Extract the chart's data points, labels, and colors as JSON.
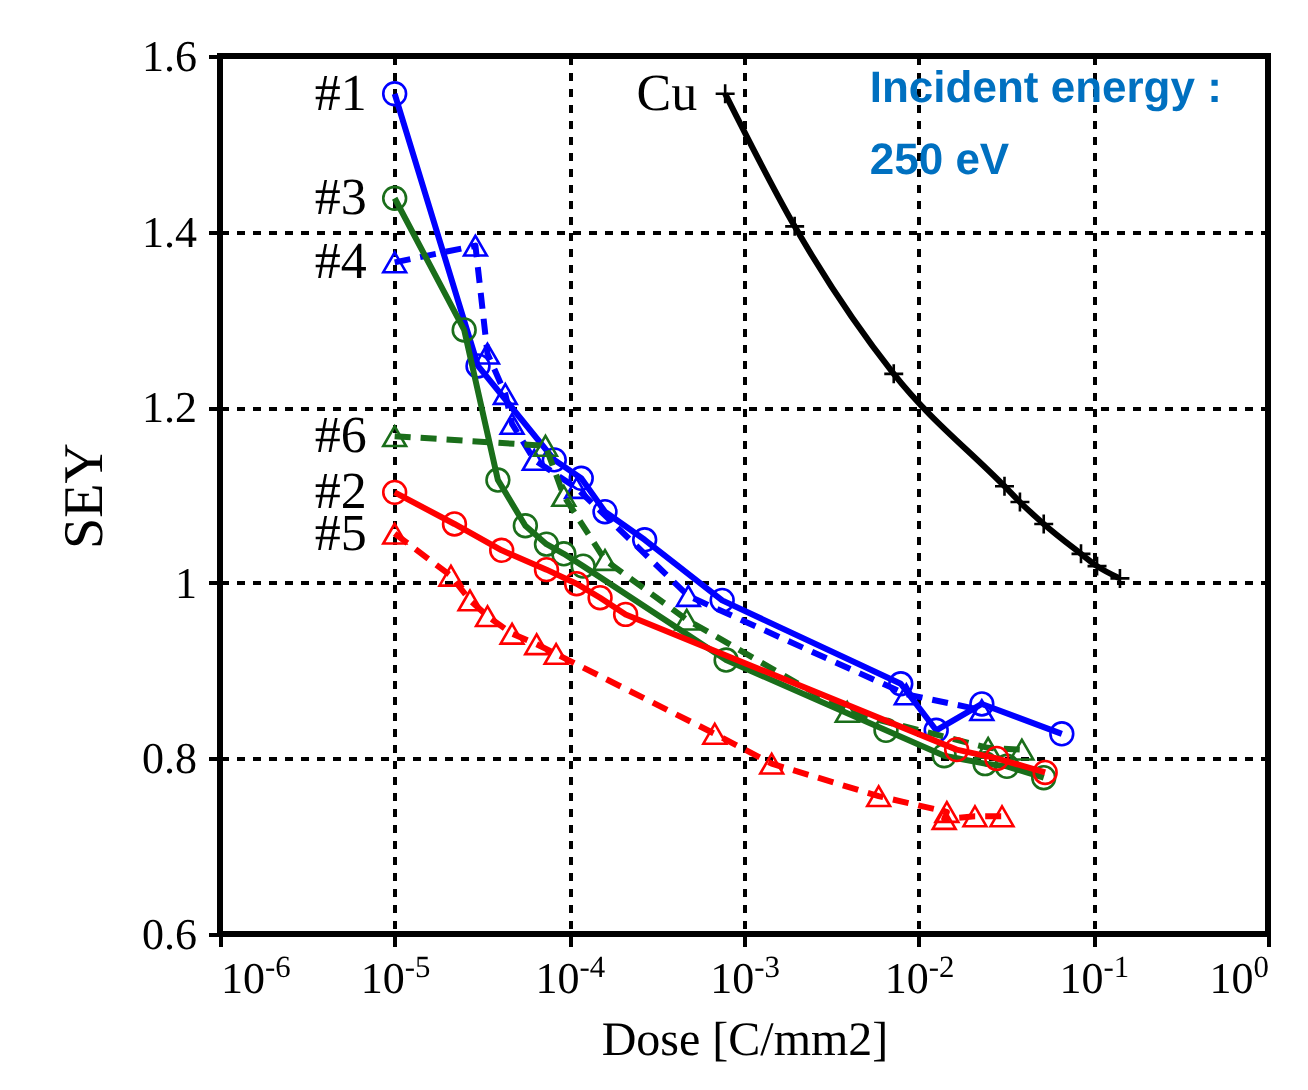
{
  "chart_data": {
    "type": "line",
    "xlabel": "Dose [C/mm2]",
    "ylabel": "SEY",
    "log": "x",
    "grid": true,
    "xlim": [
      1e-06,
      1
    ],
    "ylim": [
      0.6,
      1.6
    ],
    "xticks": [
      {
        "value": 1e-06,
        "label": "10$^{-6}$"
      },
      {
        "value": 1e-05,
        "label": "10$^{-5}$"
      },
      {
        "value": 0.0001,
        "label": "10$^{-4}$"
      },
      {
        "value": 0.001,
        "label": "10$^{-3}$"
      },
      {
        "value": 0.01,
        "label": "10$^{-2}$"
      },
      {
        "value": 0.1,
        "label": "10$^{-1}$"
      },
      {
        "value": 1,
        "label": "10$^{0}$"
      }
    ],
    "yticks": [
      0.6,
      0.8,
      1,
      1.2,
      1.4,
      1.6
    ],
    "annotations": [
      "Incident energy :\n250 eV"
    ],
    "series": [
      {
        "name": "#1",
        "color": "#0000ff",
        "marker": "circle",
        "line_style": "solid",
        "x": [
          1e-05,
          3e-05,
          8.2e-05,
          0.000117,
          0.00016,
          0.00027,
          0.00075,
          0.0079,
          0.0126,
          0.023,
          0.066
        ],
        "values": [
          1.557,
          1.247,
          1.14,
          1.119,
          1.081,
          1.049,
          0.98,
          0.885,
          0.832,
          0.862,
          0.828
        ]
      },
      {
        "name": "#4",
        "color": "#0000ff",
        "marker": "triangle",
        "line_style": "dashed",
        "x": [
          1e-05,
          2.9e-05,
          3.4e-05,
          4.3e-05,
          4.7e-05,
          6.3e-05,
          0.00011,
          0.00048,
          0.0085,
          0.023
        ],
        "values": [
          1.365,
          1.384,
          1.261,
          1.215,
          1.181,
          1.14,
          1.108,
          0.985,
          0.873,
          0.855
        ]
      },
      {
        "name": "#3",
        "color": "#1a6e1a",
        "marker": "circle",
        "line_style": "solid",
        "x": [
          1e-05,
          2.5e-05,
          3.9e-05,
          5.6e-05,
          7.4e-05,
          9.3e-05,
          0.00012,
          0.00079,
          0.0065,
          0.014,
          0.024,
          0.032,
          0.052
        ],
        "values": [
          1.438,
          1.288,
          1.117,
          1.065,
          1.044,
          1.033,
          1.019,
          0.912,
          0.832,
          0.803,
          0.794,
          0.791,
          0.778
        ]
      },
      {
        "name": "#6",
        "color": "#1a6e1a",
        "marker": "triangle",
        "line_style": "dashed",
        "x": [
          1e-05,
          7.3e-05,
          9.3e-05,
          0.00016,
          0.00047,
          0.0039,
          0.025,
          0.039
        ],
        "values": [
          1.167,
          1.156,
          1.099,
          1.026,
          0.958,
          0.853,
          0.812,
          0.81
        ]
      },
      {
        "name": "#2",
        "color": "#ff0000",
        "marker": "circle",
        "line_style": "solid",
        "x": [
          1e-05,
          2.2e-05,
          4.1e-05,
          7.4e-05,
          0.00011,
          0.00015,
          0.00021,
          0.0165,
          0.028,
          0.053
        ],
        "values": [
          1.103,
          1.067,
          1.037,
          1.015,
          0.999,
          0.983,
          0.964,
          0.81,
          0.8,
          0.784
        ]
      },
      {
        "name": "#5",
        "color": "#ff0000",
        "marker": "triangle",
        "line_style": "dashed",
        "x": [
          1e-05,
          2.1e-05,
          2.7e-05,
          3.4e-05,
          4.7e-05,
          6.5e-05,
          8.4e-05,
          0.00068,
          0.00144,
          0.0059,
          0.0145,
          0.014,
          0.021,
          0.03
        ],
        "values": [
          1.056,
          1.008,
          0.98,
          0.962,
          0.942,
          0.93,
          0.919,
          0.828,
          0.794,
          0.757,
          0.739,
          0.731,
          0.734,
          0.734
        ]
      },
      {
        "name": "Cu",
        "color": "#000000",
        "marker": "cross",
        "line_style": "solid",
        "x": [
          0.00078,
          0.00195,
          0.0072,
          0.031,
          0.038,
          0.052,
          0.085,
          0.105,
          0.142
        ],
        "values": [
          1.557,
          1.406,
          1.238,
          1.11,
          1.092,
          1.067,
          1.033,
          1.019,
          1.005
        ]
      }
    ]
  }
}
